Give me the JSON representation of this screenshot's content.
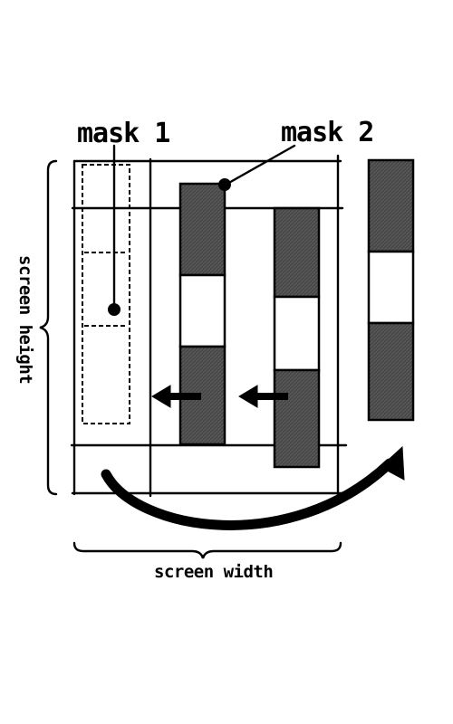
{
  "labels": {
    "mask1": "mask 1",
    "mask2": "mask 2",
    "screen_height": "screen height",
    "screen_width": "screen width"
  },
  "colors": {
    "ink": "#000000",
    "bar_fill": "#4a4a4a",
    "background": "#ffffff"
  }
}
